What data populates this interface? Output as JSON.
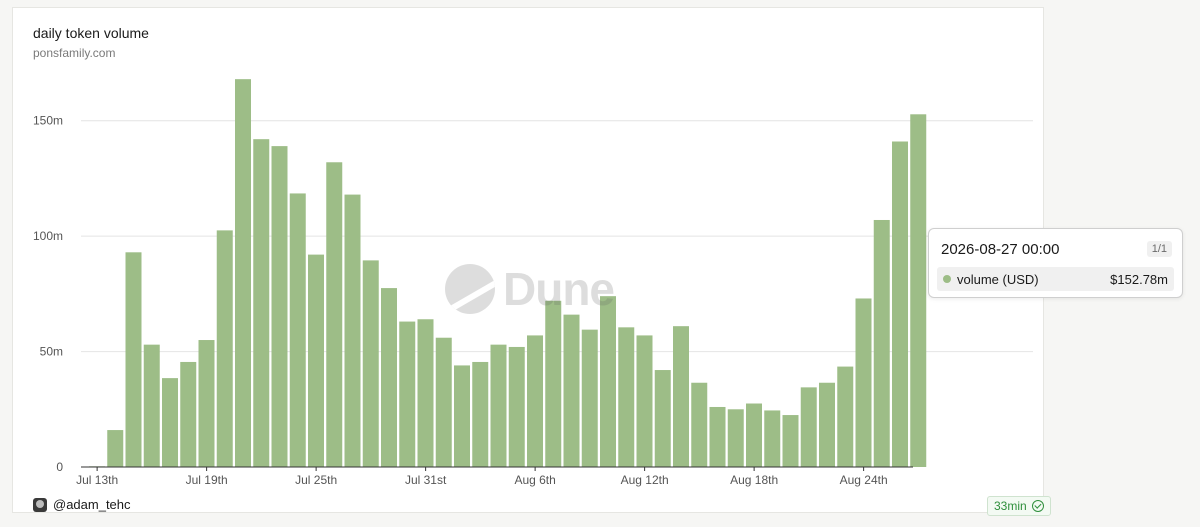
{
  "header": {
    "title": "daily token volume",
    "subtitle": "ponsfamily.com"
  },
  "footer": {
    "user": "@adam_tehc",
    "freshness": "33min"
  },
  "watermark": {
    "text": "Dune"
  },
  "tooltip": {
    "date": "2026-08-27 00:00",
    "count": "1/1",
    "series_label": "volume (USD)",
    "value": "$152.78m"
  },
  "colors": {
    "bar": "#9dbd87",
    "grid": "#e4e4e4",
    "axis": "#555555",
    "accent_green": "#2f8f3c"
  },
  "chart_data": {
    "type": "bar",
    "title": "daily token volume",
    "subtitle": "ponsfamily.com",
    "series": [
      {
        "name": "volume (USD)"
      }
    ],
    "x": [
      "2026-07-13",
      "2026-07-14",
      "2026-07-15",
      "2026-07-16",
      "2026-07-17",
      "2026-07-18",
      "2026-07-19",
      "2026-07-20",
      "2026-07-21",
      "2026-07-22",
      "2026-07-23",
      "2026-07-24",
      "2026-07-25",
      "2026-07-26",
      "2026-07-27",
      "2026-07-28",
      "2026-07-29",
      "2026-07-30",
      "2026-07-31",
      "2026-08-01",
      "2026-08-02",
      "2026-08-03",
      "2026-08-04",
      "2026-08-05",
      "2026-08-06",
      "2026-08-07",
      "2026-08-08",
      "2026-08-09",
      "2026-08-10",
      "2026-08-11",
      "2026-08-12",
      "2026-08-13",
      "2026-08-14",
      "2026-08-15",
      "2026-08-16",
      "2026-08-17",
      "2026-08-18",
      "2026-08-19",
      "2026-08-20",
      "2026-08-21",
      "2026-08-22",
      "2026-08-23",
      "2026-08-24",
      "2026-08-25",
      "2026-08-26",
      "2026-08-27"
    ],
    "values": [
      0.3,
      16,
      93,
      53,
      38.5,
      45.5,
      55,
      102.5,
      168,
      142,
      139,
      118.5,
      92,
      132,
      118,
      89.5,
      77.5,
      63,
      64,
      56,
      44,
      45.5,
      53,
      52,
      57,
      72,
      66,
      59.5,
      74,
      60.5,
      57,
      42,
      61,
      36.5,
      26,
      25,
      27.5,
      24.5,
      22.5,
      34.5,
      36.5,
      43.5,
      73,
      107,
      141,
      152.78
    ],
    "ylim": [
      0,
      175
    ],
    "y_ticks": [
      {
        "value": 0,
        "label": "0"
      },
      {
        "value": 50,
        "label": "50m"
      },
      {
        "value": 100,
        "label": "100m"
      },
      {
        "value": 150,
        "label": "150m"
      }
    ],
    "x_ticks": [
      {
        "index": 0,
        "label": "Jul 13th"
      },
      {
        "index": 6,
        "label": "Jul 19th"
      },
      {
        "index": 12,
        "label": "Jul 25th"
      },
      {
        "index": 18,
        "label": "Jul 31st"
      },
      {
        "index": 24,
        "label": "Aug 6th"
      },
      {
        "index": 30,
        "label": "Aug 12th"
      },
      {
        "index": 36,
        "label": "Aug 18th"
      },
      {
        "index": 42,
        "label": "Aug 24th"
      }
    ],
    "grid": true,
    "legend": "none"
  }
}
